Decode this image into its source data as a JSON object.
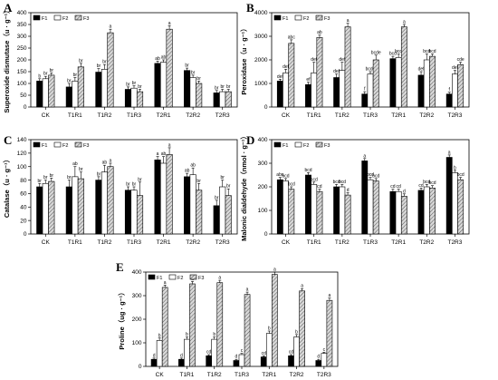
{
  "chart_data": [
    {
      "type": "bar",
      "panel": "A",
      "ylabel": "Superoxide dismutase（u · g⁻¹）",
      "ylim": [
        0,
        400
      ],
      "yticks": [
        0,
        50,
        100,
        150,
        200,
        250,
        300,
        350,
        400
      ],
      "categories": [
        "CK",
        "T1R1",
        "T1R2",
        "T1R3",
        "T2R1",
        "T2R2",
        "T2R3"
      ],
      "legend": [
        "F1",
        "F2",
        "F3"
      ],
      "legend_position": "top-left",
      "series": [
        {
          "name": "F1",
          "values": [
            110,
            85,
            148,
            75,
            185,
            155,
            60
          ],
          "errors": [
            10,
            15,
            15,
            10,
            10,
            10,
            10
          ],
          "labels": [
            "b",
            "br",
            "br",
            "br",
            "ab",
            "br",
            "br"
          ]
        },
        {
          "name": "F2",
          "values": [
            120,
            110,
            160,
            80,
            190,
            125,
            65
          ],
          "errors": [
            10,
            15,
            20,
            10,
            10,
            10,
            10
          ],
          "labels": [
            "br",
            "br",
            "br",
            "br",
            "ab",
            "br",
            "br"
          ]
        },
        {
          "name": "F3",
          "values": [
            135,
            170,
            315,
            65,
            330,
            100,
            65
          ],
          "errors": [
            10,
            15,
            15,
            10,
            15,
            10,
            10
          ],
          "labels": [
            "br",
            "br",
            "a",
            "br",
            "a",
            "br",
            "br"
          ]
        }
      ]
    },
    {
      "type": "bar",
      "panel": "B",
      "ylabel": "Peroxidase（u · g⁻¹）",
      "ylim": [
        0,
        4000
      ],
      "yticks": [
        0,
        1000,
        2000,
        3000,
        4000
      ],
      "categories": [
        "CK",
        "T1R1",
        "T1R2",
        "T1R3",
        "T2R1",
        "T2R2",
        "T2R3"
      ],
      "legend": [
        "F1",
        "F2",
        "F3"
      ],
      "legend_position": "top-left",
      "series": [
        {
          "name": "F1",
          "values": [
            1100,
            950,
            1250,
            550,
            2050,
            1350,
            550
          ],
          "errors": [
            80,
            100,
            150,
            100,
            100,
            150,
            80
          ],
          "labels": [
            "def",
            "ef",
            "def",
            "f",
            "bcd",
            "def",
            "f"
          ]
        },
        {
          "name": "F2",
          "values": [
            1450,
            1450,
            1550,
            1400,
            2100,
            2000,
            1400
          ],
          "errors": [
            150,
            450,
            350,
            100,
            150,
            250,
            150
          ],
          "labels": [
            "def",
            "def",
            "def",
            "bcde",
            "bcd",
            "bcd",
            "def"
          ]
        },
        {
          "name": "F3",
          "values": [
            2700,
            2950,
            3400,
            2000,
            3400,
            2150,
            1800
          ],
          "errors": [
            150,
            100,
            150,
            200,
            100,
            100,
            100
          ],
          "labels": [
            "abc",
            "ab",
            "a",
            "bcde",
            "a",
            "bcd",
            "cde"
          ]
        }
      ]
    },
    {
      "type": "bar",
      "panel": "C",
      "ylabel": "Catalase（u · g⁻¹）",
      "ylim": [
        0,
        140
      ],
      "yticks": [
        0,
        20,
        40,
        60,
        80,
        100,
        120,
        140
      ],
      "categories": [
        "CK",
        "T1R1",
        "T1R2",
        "T1R3",
        "T2R1",
        "T2R2",
        "T2R3"
      ],
      "legend": [
        "F1",
        "F2",
        "F3"
      ],
      "legend_position": "top-left",
      "series": [
        {
          "name": "F1",
          "values": [
            70,
            70,
            80,
            65,
            110,
            85,
            42
          ],
          "errors": [
            5,
            10,
            5,
            5,
            5,
            5,
            8
          ],
          "labels": [
            "br",
            "br",
            "br",
            "br",
            "a",
            "ab",
            "br"
          ]
        },
        {
          "name": "F2",
          "values": [
            75,
            85,
            92,
            65,
            105,
            88,
            70
          ],
          "errors": [
            5,
            15,
            10,
            5,
            10,
            10,
            10
          ],
          "labels": [
            "br",
            "ab",
            "ab",
            "br",
            "ab",
            "ab",
            "br"
          ]
        },
        {
          "name": "F3",
          "values": [
            78,
            82,
            100,
            57,
            118,
            65,
            57
          ],
          "errors": [
            5,
            10,
            5,
            20,
            10,
            10,
            10
          ],
          "labels": [
            "br",
            "br",
            "a",
            "br",
            "a",
            "br",
            "br"
          ]
        }
      ]
    },
    {
      "type": "bar",
      "panel": "D",
      "ylabel": "Malonic dialdehyde（nmol · g⁻¹）",
      "ylim": [
        0,
        400
      ],
      "yticks": [
        0,
        100,
        200,
        300,
        400
      ],
      "categories": [
        "CK",
        "T1R1",
        "T1R2",
        "T1R3",
        "T2R1",
        "T2R2",
        "T2R3"
      ],
      "legend": [
        "F1",
        "F2",
        "F3"
      ],
      "legend_position": "top-left",
      "series": [
        {
          "name": "F1",
          "values": [
            230,
            250,
            200,
            310,
            180,
            185,
            325
          ],
          "errors": [
            10,
            10,
            10,
            10,
            10,
            10,
            10
          ],
          "labels": [
            "abc",
            "bcd",
            "bcd",
            "a",
            "cd",
            "cd",
            "a"
          ]
        },
        {
          "name": "F2",
          "values": [
            225,
            210,
            200,
            230,
            180,
            200,
            260
          ],
          "errors": [
            10,
            10,
            10,
            10,
            10,
            10,
            10
          ],
          "labels": [
            "bcd",
            "bcd",
            "bcd",
            "bcd",
            "cd",
            "bcd",
            "b"
          ]
        },
        {
          "name": "F3",
          "values": [
            190,
            180,
            165,
            225,
            160,
            195,
            230
          ],
          "errors": [
            10,
            10,
            10,
            10,
            10,
            10,
            10
          ],
          "labels": [
            "bcd",
            "cd",
            "d",
            "bcd",
            "d",
            "bcd",
            "bcd"
          ]
        }
      ]
    },
    {
      "type": "bar",
      "panel": "E",
      "ylabel": "Proline（ug · g⁻¹）",
      "ylim": [
        0,
        400
      ],
      "yticks": [
        0,
        100,
        200,
        300,
        400
      ],
      "categories": [
        "CK",
        "T1R1",
        "T1R2",
        "T1R3",
        "T2R1",
        "T2R2",
        "T2R3"
      ],
      "legend": [
        "F1",
        "F2",
        "F3"
      ],
      "legend_position": "top-left",
      "series": [
        {
          "name": "F1",
          "values": [
            30,
            30,
            45,
            25,
            40,
            45,
            25
          ],
          "errors": [
            5,
            5,
            5,
            5,
            5,
            5,
            5
          ],
          "labels": [
            "d",
            "d",
            "cd",
            "d",
            "cd",
            "cd",
            "d"
          ]
        },
        {
          "name": "F2",
          "values": [
            110,
            115,
            115,
            50,
            140,
            125,
            55
          ],
          "errors": [
            10,
            10,
            10,
            5,
            10,
            10,
            5
          ],
          "labels": [
            "b",
            "b",
            "b",
            "c",
            "b",
            "b",
            "c"
          ]
        },
        {
          "name": "F3",
          "values": [
            335,
            350,
            355,
            305,
            390,
            320,
            280
          ],
          "errors": [
            10,
            10,
            10,
            10,
            10,
            10,
            10
          ],
          "labels": [
            "a",
            "a",
            "a",
            "a",
            "a",
            "a",
            "a"
          ]
        }
      ]
    }
  ],
  "colors": {
    "F1": "#000000",
    "F2": "#ffffff",
    "F3": "#bdbdbd",
    "axis": "#000000"
  }
}
